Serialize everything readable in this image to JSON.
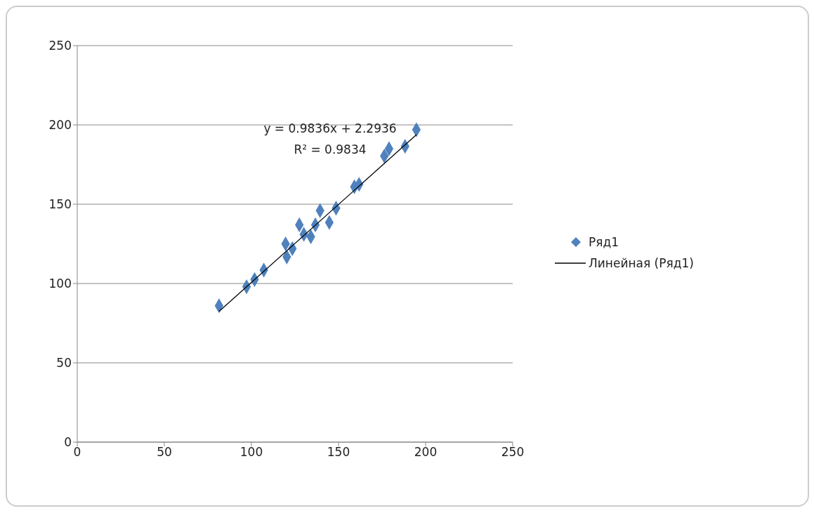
{
  "chart_data": {
    "type": "scatter",
    "x": [
      81.4,
      97.2,
      101.8,
      107.1,
      119.6,
      120.3,
      123.5,
      127.5,
      130.1,
      134.1,
      136.7,
      139.4,
      144.7,
      148.6,
      159.1,
      161.8,
      176.3,
      179,
      188.2,
      194.7
    ],
    "series": [
      {
        "name": "Ряд1",
        "color": "#4f81bd",
        "marker": "diamond",
        "values": [
          86,
          98,
          102.5,
          108.5,
          125,
          116.8,
          122,
          137,
          131,
          129.5,
          137,
          146,
          138.5,
          147.5,
          161,
          162.5,
          180.4,
          185,
          186.5,
          197
        ]
      },
      {
        "name": "Линейная (Ряд1)",
        "type": "line",
        "color": "#000000",
        "marker": "none",
        "x": [
          81.4,
          194.7
        ],
        "values": [
          82.4,
          193.8
        ]
      }
    ],
    "xlim": [
      0,
      250
    ],
    "xticks": [
      0,
      50,
      100,
      150,
      200,
      250
    ],
    "ylim": [
      0,
      250
    ],
    "yticks": [
      0,
      50,
      100,
      150,
      200,
      250
    ],
    "grid": "y",
    "legend": "right",
    "annotations": [
      "y = 0.9836x + 2.2936",
      "R² = 0.9834"
    ]
  }
}
